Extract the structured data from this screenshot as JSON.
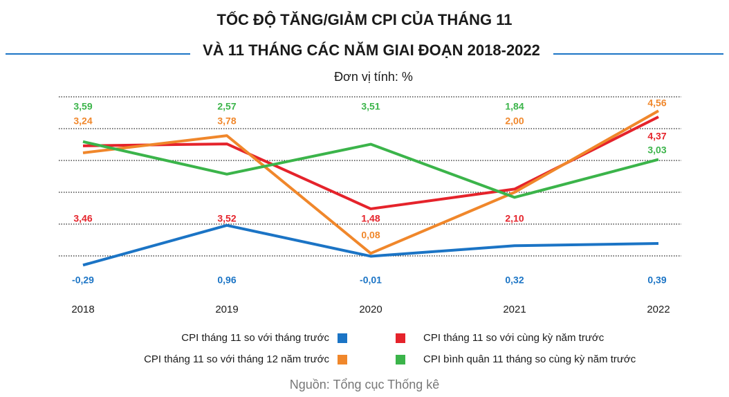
{
  "chart_data": {
    "type": "line",
    "title": [
      "TỐC ĐỘ TĂNG/GIẢM CPI CỦA THÁNG 11",
      "VÀ 11 THÁNG CÁC NĂM GIAI ĐOẠN 2018-2022"
    ],
    "subtitle": "Đơn vị tính: %",
    "source": "Nguồn: Tổng cục Thống kê",
    "categories": [
      "2018",
      "2019",
      "2020",
      "2021",
      "2022"
    ],
    "series": [
      {
        "name": "CPI tháng 11 so với tháng trước",
        "color": "#1b74c5",
        "values": [
          -0.29,
          0.96,
          -0.01,
          0.32,
          0.39
        ],
        "value_labels": [
          "-0,29",
          "0,96",
          "-0,01",
          "0,32",
          "0,39"
        ]
      },
      {
        "name": "CPI tháng 11 so với cùng kỳ năm trước",
        "color": "#e5232b",
        "values": [
          3.46,
          3.52,
          1.48,
          2.1,
          4.37
        ],
        "value_labels": [
          "3,46",
          "3,52",
          "1,48",
          "2,10",
          "4,37"
        ]
      },
      {
        "name": "CPI tháng 11 so với tháng 12 năm trước",
        "color": "#f0872b",
        "values": [
          3.24,
          3.78,
          0.08,
          2.0,
          4.56
        ],
        "value_labels": [
          "3,24",
          "3,78",
          "0,08",
          "2,00",
          "4,56"
        ]
      },
      {
        "name": "CPI bình quân 11 tháng so cùng kỳ năm trước",
        "color": "#3bb44a",
        "values": [
          3.59,
          2.57,
          3.51,
          1.84,
          3.03
        ],
        "value_labels": [
          "3,59",
          "2,57",
          "3,51",
          "1,84",
          "3,03"
        ]
      }
    ],
    "ylim": [
      -1,
      5
    ],
    "yticks": [
      0,
      1,
      2,
      3,
      4,
      5
    ],
    "grid": true
  }
}
